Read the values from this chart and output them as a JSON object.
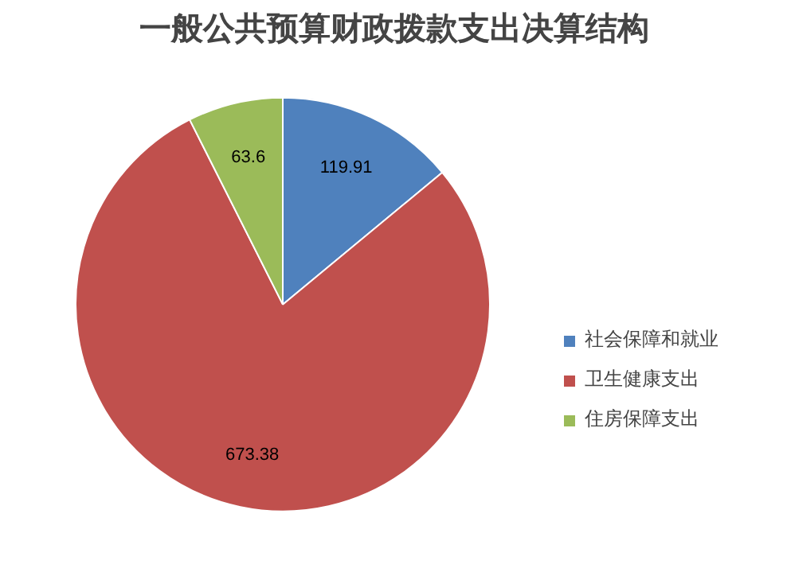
{
  "chart_data": {
    "type": "pie",
    "title": "一般公共预算财政拨款支出决算结构",
    "categories": [
      "社会保障和就业",
      "卫生健康支出",
      "住房保障支出"
    ],
    "values": [
      119.91,
      673.38,
      63.6
    ],
    "colors": [
      "#4f81bd",
      "#c0504d",
      "#9bbb59"
    ],
    "data_labels": true,
    "legend": "right"
  }
}
